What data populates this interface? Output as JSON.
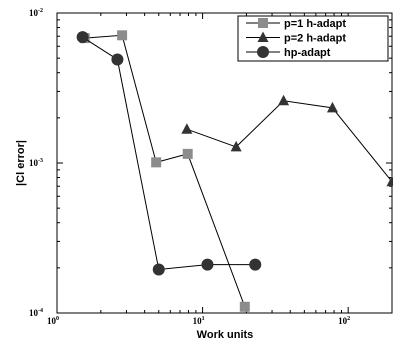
{
  "chart_data": {
    "type": "line",
    "xlabel": "Work units",
    "ylabel": "|Cl error|",
    "xscale": "log",
    "yscale": "log",
    "xlim": [
      1,
      200
    ],
    "ylim": [
      0.0001,
      0.01
    ],
    "x_ticks": [
      {
        "base": "10",
        "exp": "0",
        "value": 1
      },
      {
        "base": "10",
        "exp": "1",
        "value": 10
      },
      {
        "base": "10",
        "exp": "2",
        "value": 100
      }
    ],
    "y_ticks": [
      {
        "base": "10",
        "exp": "-2",
        "value": 0.01
      },
      {
        "base": "10",
        "exp": "-3",
        "value": 0.001
      },
      {
        "base": "10",
        "exp": "-4",
        "value": 0.0001
      }
    ],
    "legend_position": "top-right",
    "series": [
      {
        "name": "p=1 h-adapt",
        "marker": "square",
        "color": "#8c8c8c",
        "points": [
          [
            1.55,
            0.0068
          ],
          [
            2.8,
            0.0071
          ],
          [
            4.8,
            0.00101
          ],
          [
            7.9,
            0.00115
          ],
          [
            19.5,
            0.00011
          ]
        ]
      },
      {
        "name": "p=2 h-adapt",
        "marker": "triangle",
        "color": "#333333",
        "points": [
          [
            7.8,
            0.00168
          ],
          [
            17,
            0.00128
          ],
          [
            36,
            0.0026
          ],
          [
            78,
            0.00233
          ],
          [
            200,
            0.00075
          ]
        ]
      },
      {
        "name": "hp-adapt",
        "marker": "circle",
        "color": "#333333",
        "points": [
          [
            1.5,
            0.0069
          ],
          [
            2.6,
            0.0049
          ],
          [
            5,
            0.000195
          ],
          [
            10.8,
            0.00021
          ],
          [
            23,
            0.00021
          ]
        ]
      }
    ]
  }
}
